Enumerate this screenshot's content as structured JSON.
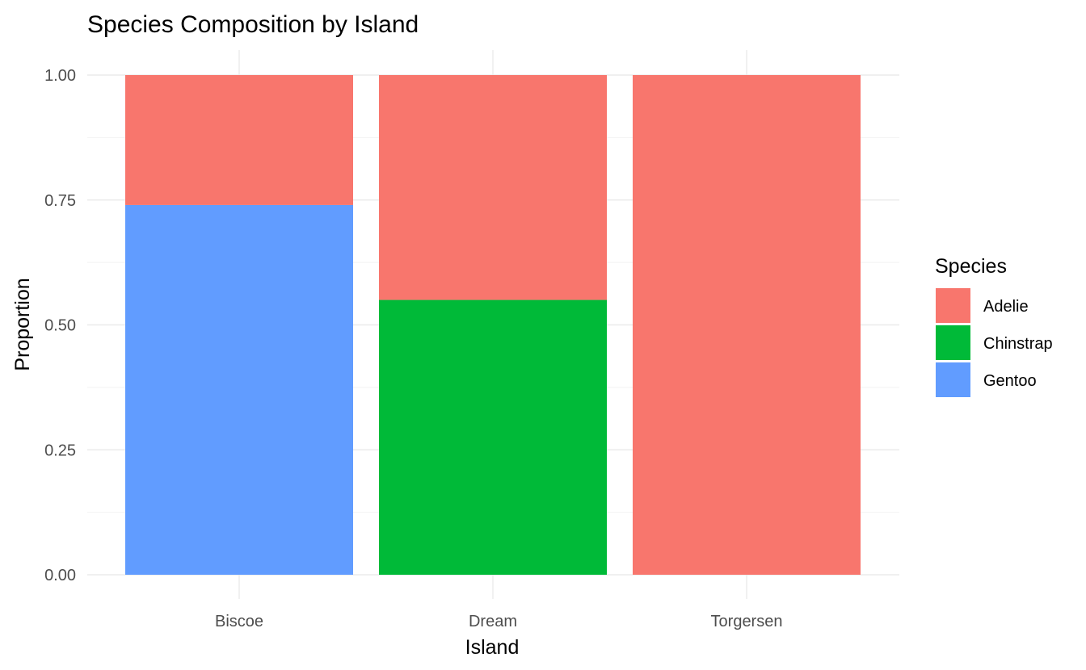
{
  "chart_data": {
    "type": "bar",
    "stacked": true,
    "title": "Species Composition by Island",
    "xlabel": "Island",
    "ylabel": "Proportion",
    "categories": [
      "Biscoe",
      "Dream",
      "Torgersen"
    ],
    "ylim": [
      0,
      1
    ],
    "yticks": [
      "0.00",
      "0.25",
      "0.50",
      "0.75",
      "1.00"
    ],
    "grid": true,
    "legend": {
      "title": "Species",
      "position": "right"
    },
    "series": [
      {
        "name": "Adelie",
        "color": "#F8766D",
        "values": [
          0.26,
          0.45,
          1.0
        ]
      },
      {
        "name": "Chinstrap",
        "color": "#00BA38",
        "values": [
          0.0,
          0.55,
          0.0
        ]
      },
      {
        "name": "Gentoo",
        "color": "#619CFF",
        "values": [
          0.74,
          0.0,
          0.0
        ]
      }
    ],
    "stack_order_bottom_to_top": [
      "Gentoo",
      "Chinstrap",
      "Adelie"
    ]
  }
}
